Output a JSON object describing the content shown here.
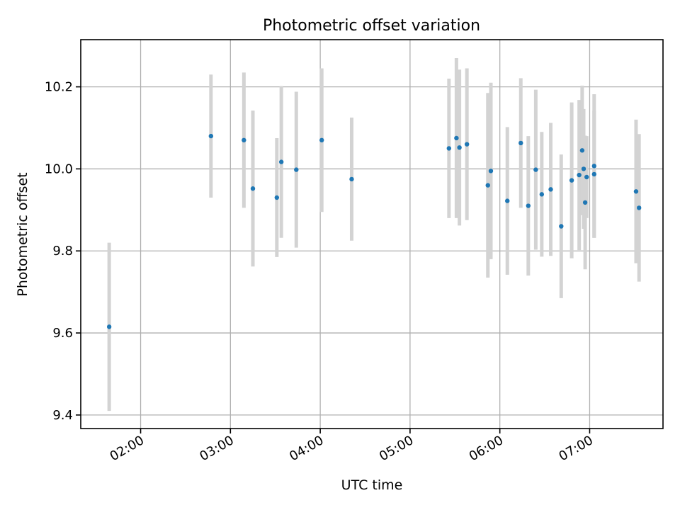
{
  "chart_data": {
    "type": "scatter",
    "title": "Photometric offset variation",
    "xlabel": "UTC time",
    "ylabel": "Photometric offset",
    "x_unit": "HH:MM (UTC)",
    "xlim": [
      "01:20",
      "07:49"
    ],
    "ylim": [
      9.367,
      10.315
    ],
    "x_ticks": [
      "02:00",
      "03:00",
      "04:00",
      "05:00",
      "06:00",
      "07:00"
    ],
    "y_ticks": [
      9.4,
      9.6,
      9.8,
      10.0,
      10.2
    ],
    "y_tick_labels": [
      "9.4",
      "9.6",
      "9.8",
      "10.0",
      "10.2"
    ],
    "grid": true,
    "legend": "none",
    "point_color": "#1f77b4",
    "errorbar_color": "#d3d3d3",
    "points": [
      {
        "time": "01:39",
        "y": 9.615,
        "yerr": 0.205
      },
      {
        "time": "02:47",
        "y": 10.08,
        "yerr": 0.15
      },
      {
        "time": "03:09",
        "y": 10.07,
        "yerr": 0.165
      },
      {
        "time": "03:15",
        "y": 9.952,
        "yerr": 0.19
      },
      {
        "time": "03:31",
        "y": 9.93,
        "yerr": 0.145
      },
      {
        "time": "03:34",
        "y": 10.017,
        "yerr": 0.185
      },
      {
        "time": "03:44",
        "y": 9.998,
        "yerr": 0.19
      },
      {
        "time": "04:01",
        "y": 10.07,
        "yerr": 0.175
      },
      {
        "time": "04:21",
        "y": 9.975,
        "yerr": 0.15
      },
      {
        "time": "05:26",
        "y": 10.05,
        "yerr": 0.17
      },
      {
        "time": "05:31",
        "y": 10.075,
        "yerr": 0.195
      },
      {
        "time": "05:33",
        "y": 10.052,
        "yerr": 0.19
      },
      {
        "time": "05:38",
        "y": 10.06,
        "yerr": 0.185
      },
      {
        "time": "05:52",
        "y": 9.96,
        "yerr": 0.225
      },
      {
        "time": "05:54",
        "y": 9.995,
        "yerr": 0.215
      },
      {
        "time": "06:05",
        "y": 9.922,
        "yerr": 0.18
      },
      {
        "time": "06:14",
        "y": 10.063,
        "yerr": 0.158
      },
      {
        "time": "06:19",
        "y": 9.91,
        "yerr": 0.17
      },
      {
        "time": "06:24",
        "y": 9.998,
        "yerr": 0.195
      },
      {
        "time": "06:28",
        "y": 9.938,
        "yerr": 0.152
      },
      {
        "time": "06:34",
        "y": 9.95,
        "yerr": 0.162
      },
      {
        "time": "06:41",
        "y": 9.86,
        "yerr": 0.175
      },
      {
        "time": "06:48",
        "y": 9.972,
        "yerr": 0.19
      },
      {
        "time": "06:53",
        "y": 9.985,
        "yerr": 0.183
      },
      {
        "time": "06:55",
        "y": 10.045,
        "yerr": 0.158
      },
      {
        "time": "06:56",
        "y": 10.0,
        "yerr": 0.146
      },
      {
        "time": "06:57",
        "y": 9.918,
        "yerr": 0.163
      },
      {
        "time": "06:58",
        "y": 9.98,
        "yerr": 0.1
      },
      {
        "time": "07:03",
        "y": 9.987,
        "yerr": 0.155
      },
      {
        "time": "07:03",
        "y": 10.007,
        "yerr": 0.175
      },
      {
        "time": "07:31",
        "y": 9.945,
        "yerr": 0.175
      },
      {
        "time": "07:33",
        "y": 9.905,
        "yerr": 0.18
      }
    ]
  }
}
